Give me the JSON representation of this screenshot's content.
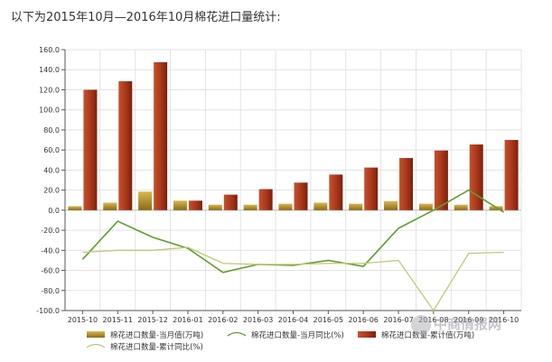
{
  "caption": "以下为2015年10月—2016年10月棉花进口量统计:",
  "watermark": "中商情报网",
  "chart_data": {
    "type": "bar",
    "categories": [
      "2015-10",
      "2015-11",
      "2015-12",
      "2016-01",
      "2016-02",
      "2016-03",
      "2016-04",
      "2016-05",
      "2016-06",
      "2016-07",
      "2016-08",
      "2016-09",
      "2016-10"
    ],
    "ylim": [
      -100,
      160
    ],
    "yticks": [
      "160.0",
      "140.0",
      "120.0",
      "100.0",
      "80.0",
      "60.0",
      "40.0",
      "20.0",
      "0.0",
      "-20.0",
      "-40.0",
      "-60.0",
      "-80.0",
      "-100.0"
    ],
    "grid": true,
    "legend_position": "bottom",
    "series": [
      {
        "name": "棉花进口数量-当月值(万吨)",
        "type": "bar",
        "color": "#b8902a",
        "values": [
          4.0,
          7.5,
          18.5,
          9.5,
          5.5,
          5.5,
          6.5,
          7.5,
          6.5,
          9.0,
          6.5,
          5.5,
          4.0
        ]
      },
      {
        "name": "棉花进口数量-当月同比(%)",
        "type": "line",
        "color": "#5e9e2c",
        "values": [
          -49,
          -11,
          -27,
          -38,
          -62,
          -54,
          -55,
          -50,
          -56,
          -18,
          0,
          20,
          -2
        ]
      },
      {
        "name": "棉花进口数量-累计值(万吨)",
        "type": "bar",
        "color": "#a8361a",
        "values": [
          120,
          128.5,
          147.5,
          9.5,
          15.5,
          21,
          27.5,
          35.5,
          42.5,
          52,
          59.5,
          65.5,
          70
        ]
      },
      {
        "name": "棉花进口数量-累计同比(%)",
        "type": "line",
        "color": "#c2c877",
        "values": [
          -42,
          -40,
          -40,
          -37,
          -53,
          -54,
          -54,
          -53,
          -53,
          -50,
          -100,
          -43,
          -42
        ]
      }
    ]
  }
}
